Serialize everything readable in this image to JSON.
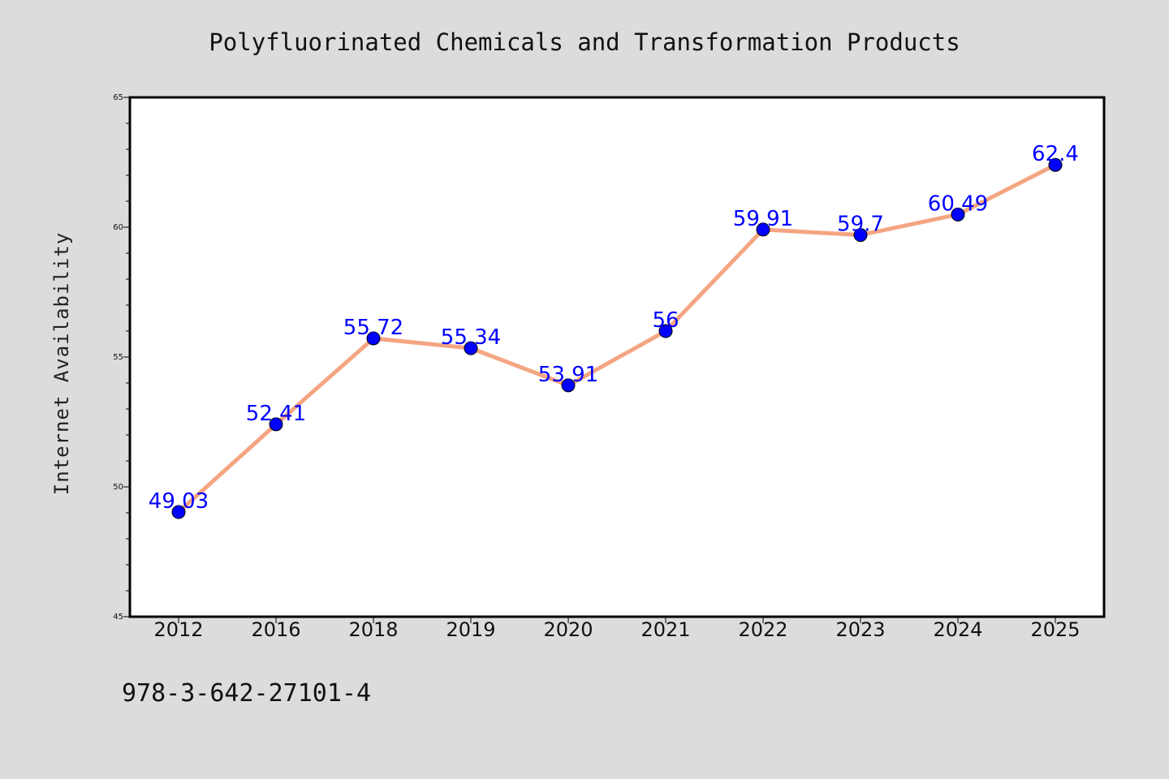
{
  "chart_data": {
    "type": "line",
    "title": "Polyfluorinated Chemicals and Transformation Products",
    "xlabel": "",
    "ylabel": "Internet Availability",
    "categories": [
      "2012",
      "2016",
      "2018",
      "2019",
      "2020",
      "2021",
      "2022",
      "2023",
      "2024",
      "2025"
    ],
    "series": [
      {
        "values": [
          49.03,
          52.41,
          55.72,
          55.34,
          53.91,
          56,
          59.91,
          59.7,
          60.49,
          62.4
        ],
        "data_labels": [
          "49.03",
          "52.41",
          "55.72",
          "55.34",
          "53.91",
          "56",
          "59.91",
          "59.7",
          "60.49",
          "62.4"
        ]
      }
    ],
    "ylim": [
      45,
      65
    ],
    "yticks": [
      "45",
      "50",
      "55",
      "60",
      "65"
    ],
    "grid": false,
    "legend": "none",
    "colors": {
      "line": "#f4a582",
      "marker": "#0000ff",
      "data_label": "#0000ff",
      "background": "#dcdcdc",
      "plot_area": "#ffffff"
    }
  },
  "footer": {
    "isbn": "978-3-642-27101-4"
  }
}
